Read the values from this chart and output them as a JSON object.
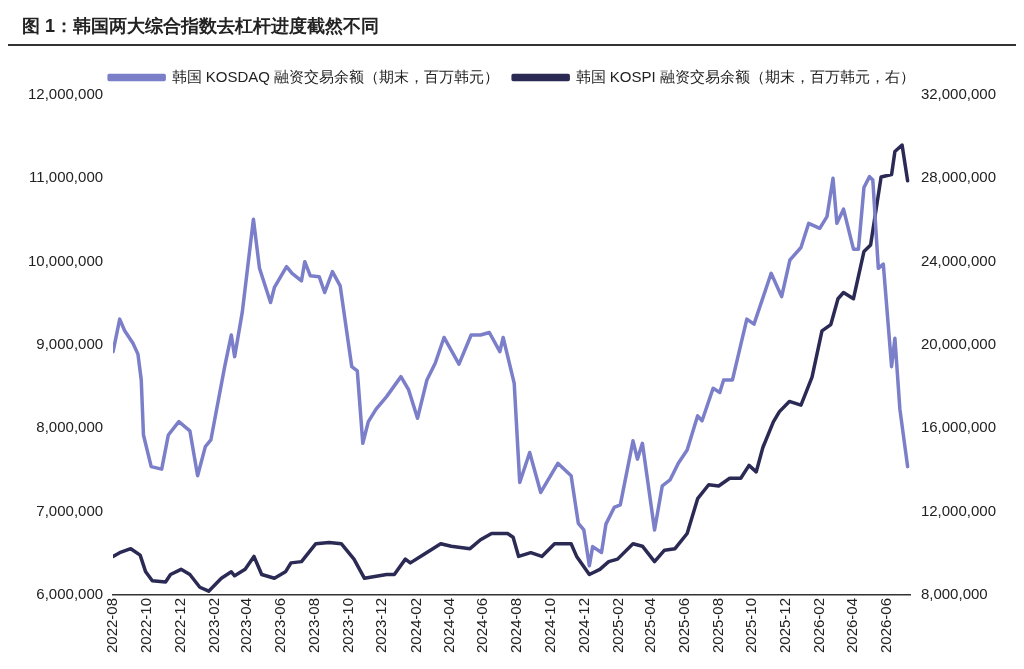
{
  "chart_data": {
    "type": "line",
    "title": "图 1：韩国两大综合指数去杠杆进度截然不同",
    "xlim": [
      "2022-08-01",
      "2026-07-15"
    ],
    "xticks": [
      "2022-08",
      "2022-10",
      "2022-12",
      "2023-02",
      "2023-04",
      "2023-06",
      "2023-08",
      "2023-10",
      "2023-12",
      "2024-02",
      "2024-04",
      "2024-06",
      "2024-08",
      "2024-10",
      "2024-12",
      "2025-02",
      "2025-04",
      "2025-06",
      "2025-08",
      "2025-10",
      "2025-12",
      "2026-02",
      "2026-04",
      "2026-06"
    ],
    "ylim": [
      6000000,
      12000000
    ],
    "yticks": [
      {
        "value": 6000000,
        "label": "6,000,000"
      },
      {
        "value": 7000000,
        "label": "7,000,000"
      },
      {
        "value": 8000000,
        "label": "8,000,000"
      },
      {
        "value": 9000000,
        "label": "9,000,000"
      },
      {
        "value": 10000000,
        "label": "10,000,000"
      },
      {
        "value": 11000000,
        "label": "11,000,000"
      },
      {
        "value": 12000000,
        "label": "12,000,000"
      }
    ],
    "y2lim": [
      8000000,
      32000000
    ],
    "y2ticks": [
      {
        "value": 8000000,
        "label": "8,000,000"
      },
      {
        "value": 12000000,
        "label": "12,000,000"
      },
      {
        "value": 16000000,
        "label": "16,000,000"
      },
      {
        "value": 20000000,
        "label": "20,000,000"
      },
      {
        "value": 24000000,
        "label": "24,000,000"
      },
      {
        "value": 28000000,
        "label": "28,000,000"
      },
      {
        "value": 32000000,
        "label": "32,000,000"
      }
    ],
    "grid": false,
    "legend": "top",
    "marker": "none",
    "line_style": "solid",
    "series": [
      {
        "name": "韩国 KOSDAQ 融资交易余额（期末，百万韩元）",
        "color": "#7b7ec8",
        "axis": "y",
        "x": [
          "2022-08-01",
          "2022-08-13",
          "2022-08-22",
          "2022-09-06",
          "2022-09-15",
          "2022-09-21",
          "2022-09-25",
          "2022-10-09",
          "2022-10-28",
          "2022-11-09",
          "2022-11-28",
          "2022-12-18",
          "2023-01-01",
          "2023-01-15",
          "2023-01-25",
          "2023-02-19",
          "2023-03-03",
          "2023-03-09",
          "2023-03-23",
          "2023-04-12",
          "2023-04-23",
          "2023-05-13",
          "2023-05-20",
          "2023-06-11",
          "2023-06-21",
          "2023-07-08",
          "2023-07-14",
          "2023-07-24",
          "2023-08-09",
          "2023-08-19",
          "2023-09-02",
          "2023-09-16",
          "2023-10-07",
          "2023-10-17",
          "2023-10-27",
          "2023-11-06",
          "2023-11-20",
          "2023-12-09",
          "2024-01-04",
          "2024-01-18",
          "2024-02-03",
          "2024-02-20",
          "2024-03-06",
          "2024-03-22",
          "2024-04-18",
          "2024-05-10",
          "2024-05-27",
          "2024-06-12",
          "2024-07-01",
          "2024-07-07",
          "2024-07-27",
          "2024-08-06",
          "2024-08-24",
          "2024-09-13",
          "2024-10-14",
          "2024-11-07",
          "2024-11-20",
          "2024-11-30",
          "2024-12-10",
          "2024-12-16",
          "2025-01-01",
          "2025-01-09",
          "2025-01-24",
          "2025-02-04",
          "2025-02-27",
          "2025-03-07",
          "2025-03-16",
          "2025-04-07",
          "2025-04-21",
          "2025-05-05",
          "2025-05-20",
          "2025-06-05",
          "2025-06-24",
          "2025-07-02",
          "2025-07-22",
          "2025-08-03",
          "2025-08-10",
          "2025-08-26",
          "2025-09-21",
          "2025-10-04",
          "2025-11-04",
          "2025-11-23",
          "2025-12-08",
          "2025-12-28",
          "2026-01-11",
          "2026-01-31",
          "2026-02-13",
          "2026-02-24",
          "2026-03-03",
          "2026-03-15",
          "2026-04-02",
          "2026-04-11",
          "2026-04-21",
          "2026-05-01",
          "2026-05-07",
          "2026-05-17",
          "2026-05-26",
          "2026-06-10",
          "2026-06-16",
          "2026-06-25",
          "2026-07-09"
        ],
        "values": [
          8920000,
          9310000,
          9170000,
          9020000,
          8890000,
          8580000,
          7920000,
          7540000,
          7510000,
          7920000,
          8080000,
          7970000,
          7430000,
          7780000,
          7860000,
          8740000,
          9120000,
          8860000,
          9400000,
          10510000,
          9920000,
          9510000,
          9690000,
          9940000,
          9860000,
          9770000,
          10000000,
          9830000,
          9820000,
          9630000,
          9880000,
          9710000,
          8740000,
          8690000,
          7820000,
          8080000,
          8230000,
          8380000,
          8620000,
          8460000,
          8120000,
          8580000,
          8780000,
          9090000,
          8770000,
          9120000,
          9120000,
          9150000,
          8920000,
          9090000,
          8540000,
          7350000,
          7710000,
          7230000,
          7580000,
          7430000,
          6860000,
          6780000,
          6350000,
          6580000,
          6510000,
          6850000,
          7050000,
          7080000,
          7850000,
          7630000,
          7820000,
          6780000,
          7310000,
          7380000,
          7580000,
          7740000,
          8150000,
          8090000,
          8480000,
          8430000,
          8580000,
          8580000,
          9310000,
          9250000,
          9860000,
          9580000,
          10020000,
          10170000,
          10460000,
          10400000,
          10540000,
          11000000,
          10460000,
          10630000,
          10150000,
          10150000,
          10890000,
          11020000,
          10980000,
          9920000,
          9970000,
          8740000,
          9080000,
          8230000,
          7540000
        ]
      },
      {
        "name": "韩国 KOSPI 融资交易余额（期末，百万韩元，右）",
        "color": "#2b2a55",
        "axis": "y2",
        "x": [
          "2022-08-01",
          "2022-08-13",
          "2022-09-02",
          "2022-09-19",
          "2022-09-29",
          "2022-10-11",
          "2022-11-04",
          "2022-11-13",
          "2022-12-02",
          "2022-12-18",
          "2023-01-05",
          "2023-01-21",
          "2023-02-13",
          "2023-03-03",
          "2023-03-09",
          "2023-03-28",
          "2023-04-13",
          "2023-04-27",
          "2023-05-20",
          "2023-06-09",
          "2023-06-19",
          "2023-07-08",
          "2023-08-03",
          "2023-08-27",
          "2023-09-18",
          "2023-10-11",
          "2023-10-30",
          "2023-12-09",
          "2023-12-23",
          "2024-01-12",
          "2024-01-21",
          "2024-02-12",
          "2024-03-16",
          "2024-04-04",
          "2024-05-08",
          "2024-05-27",
          "2024-06-16",
          "2024-07-15",
          "2024-07-25",
          "2024-08-04",
          "2024-08-26",
          "2024-09-15",
          "2024-10-08",
          "2024-11-07",
          "2024-11-17",
          "2024-12-10",
          "2024-12-29",
          "2025-01-14",
          "2025-01-30",
          "2025-02-27",
          "2025-03-16",
          "2025-04-07",
          "2025-04-25",
          "2025-05-14",
          "2025-06-05",
          "2025-06-24",
          "2025-07-14",
          "2025-08-01",
          "2025-08-21",
          "2025-09-10",
          "2025-09-25",
          "2025-10-08",
          "2025-10-20",
          "2025-11-08",
          "2025-11-19",
          "2025-12-07",
          "2025-12-28",
          "2026-01-17",
          "2026-02-04",
          "2026-02-20",
          "2026-03-05",
          "2026-03-15",
          "2026-04-02",
          "2026-04-21",
          "2026-05-03",
          "2026-05-22",
          "2026-06-10",
          "2026-06-16",
          "2026-06-29",
          "2026-07-09"
        ],
        "values": [
          9850000,
          10030000,
          10220000,
          9910000,
          9110000,
          8680000,
          8620000,
          8980000,
          9230000,
          8980000,
          8370000,
          8180000,
          8800000,
          9110000,
          8920000,
          9230000,
          9850000,
          8980000,
          8800000,
          9110000,
          9540000,
          9600000,
          10460000,
          10520000,
          10460000,
          9720000,
          8800000,
          8980000,
          8980000,
          9720000,
          9540000,
          9910000,
          10460000,
          10340000,
          10220000,
          10650000,
          10950000,
          10950000,
          10770000,
          9850000,
          10030000,
          9850000,
          10460000,
          10460000,
          9850000,
          8980000,
          9230000,
          9600000,
          9720000,
          10460000,
          10340000,
          9600000,
          10150000,
          10220000,
          10950000,
          12620000,
          13290000,
          13230000,
          13600000,
          13600000,
          14220000,
          13910000,
          15080000,
          16310000,
          16800000,
          17290000,
          17110000,
          18460000,
          20680000,
          20980000,
          22220000,
          22520000,
          22220000,
          24490000,
          24800000,
          28060000,
          28180000,
          29290000,
          29600000,
          27880000
        ]
      }
    ]
  }
}
